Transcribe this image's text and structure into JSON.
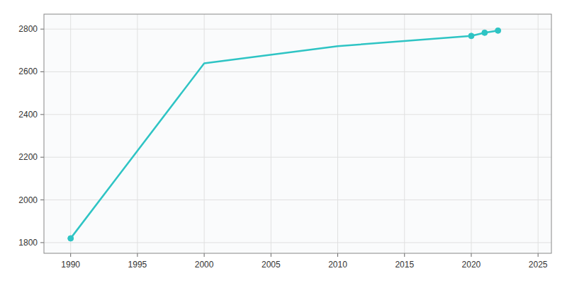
{
  "chart_data": {
    "type": "line",
    "x": [
      1990,
      2000,
      2010,
      2020,
      2021,
      2022
    ],
    "series": [
      {
        "type": "line",
        "values": [
          1820,
          2640,
          2720,
          2768,
          2783,
          2793
        ],
        "color": "#2ec4c4",
        "line_style": "solid"
      },
      {
        "type": "scatter",
        "values": [
          1820,
          null,
          null,
          2768,
          2783,
          2793
        ],
        "color": "#2ec4c4",
        "marker": "circle"
      }
    ],
    "xlim": [
      1988,
      2026
    ],
    "ylim": [
      1750,
      2870
    ],
    "xticks": [
      1990,
      1995,
      2000,
      2005,
      2010,
      2015,
      2020,
      2025
    ],
    "yticks": [
      1800,
      2000,
      2200,
      2400,
      2600,
      2800
    ],
    "grid": true
  }
}
